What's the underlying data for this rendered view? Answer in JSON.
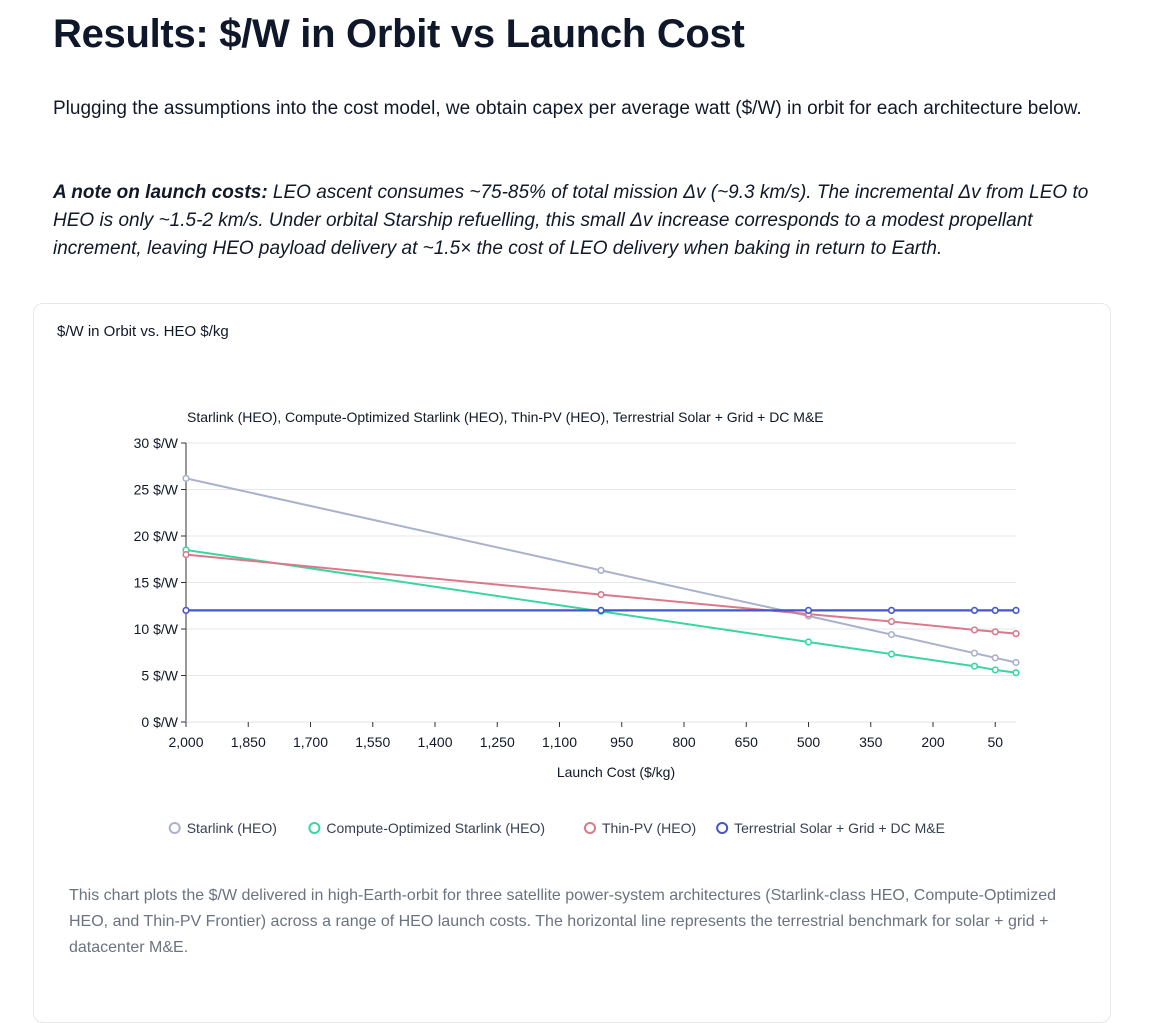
{
  "page": {
    "title": "Results: $/W in Orbit vs Launch Cost",
    "intro": "Plugging the assumptions into the cost model, we obtain capex per average watt ($/W) in orbit for each architecture below.",
    "note_label": "A note on launch costs:",
    "note_text": " LEO ascent consumes ~75-85% of total mission Δv (~9.3 km/s). The incremental Δv from LEO to HEO is only ~1.5-2 km/s. Under orbital Starship refuelling, this small Δv increase corresponds to a modest propellant increment, leaving HEO payload delivery at ~1.5× the cost of LEO delivery when baking in return to Earth.",
    "card_title": "$/W in Orbit vs. HEO $/kg",
    "caption": "This chart plots the $/W delivered in high-Earth-orbit for three satellite power-system architectures (Starlink-class HEO, Compute-Optimized HEO, and Thin-PV Frontier) across a range of HEO launch costs. The horizontal line represents the terrestrial benchmark for solar + grid + datacenter M&E."
  },
  "chart_data": {
    "type": "line",
    "title": "Starlink (HEO), Compute-Optimized Starlink (HEO), Thin-PV (HEO), Terrestrial Solar + Grid + DC M&E",
    "xlabel": "Launch Cost ($/kg)",
    "ylabel": "",
    "x_reversed": true,
    "xlim": [
      2000,
      0
    ],
    "ylim": [
      0,
      30
    ],
    "x_ticks": [
      2000,
      1850,
      1700,
      1550,
      1400,
      1250,
      1100,
      950,
      800,
      650,
      500,
      350,
      200,
      50
    ],
    "x_tick_labels": [
      "2,000",
      "1,850",
      "1,700",
      "1,550",
      "1,400",
      "1,250",
      "1,100",
      "950",
      "800",
      "650",
      "500",
      "350",
      "200",
      "50"
    ],
    "y_ticks": [
      0,
      5,
      10,
      15,
      20,
      25,
      30
    ],
    "y_tick_labels": [
      "0 $/W",
      "5 $/W",
      "10 $/W",
      "15 $/W",
      "20 $/W",
      "25 $/W",
      "30 $/W"
    ],
    "grid": true,
    "legend_position": "bottom",
    "x": [
      2000,
      1000,
      500,
      300,
      100,
      50,
      0
    ],
    "series": [
      {
        "name": "Starlink (HEO)",
        "color": "#a9b1cc",
        "values": [
          26.2,
          16.3,
          11.4,
          9.4,
          7.4,
          6.9,
          6.4
        ]
      },
      {
        "name": "Compute-Optimized Starlink (HEO)",
        "color": "#3bd69f",
        "values": [
          18.5,
          11.9,
          8.6,
          7.3,
          6.0,
          5.6,
          5.3
        ]
      },
      {
        "name": "Thin-PV (HEO)",
        "color": "#d9798a",
        "values": [
          18.0,
          13.7,
          11.6,
          10.8,
          9.9,
          9.7,
          9.5
        ]
      },
      {
        "name": "Terrestrial Solar + Grid + DC M&E",
        "color": "#4456c9",
        "values": [
          12.0,
          12.0,
          12.0,
          12.0,
          12.0,
          12.0,
          12.0
        ]
      }
    ]
  }
}
